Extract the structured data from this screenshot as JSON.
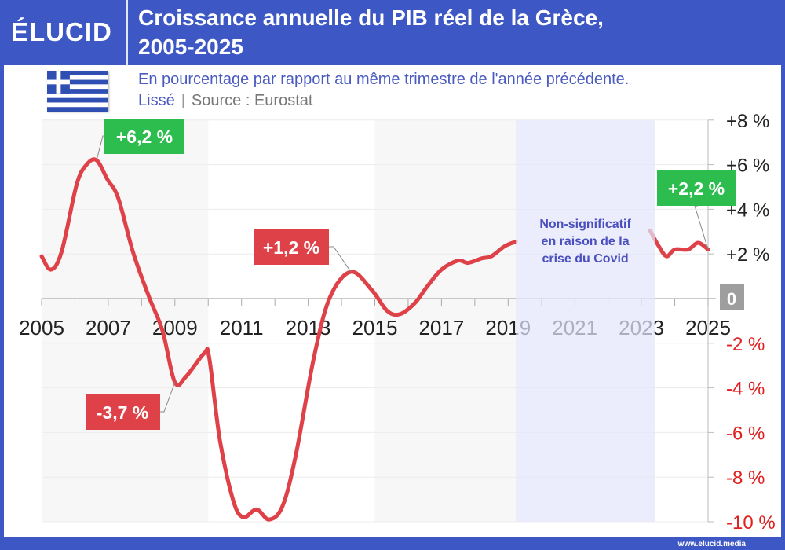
{
  "header": {
    "logo": "ÉLUCID",
    "title_line1": "Croissance annuelle du PIB réel de la Grèce,",
    "title_line2": "2005-2025"
  },
  "subtitle": {
    "line1": "En pourcentage par rapport au même trimestre de l'année précédente.",
    "smoothed": "Lissé",
    "separator": "|",
    "source": "Source : Eurostat"
  },
  "flag": "greece-flag",
  "footer": "www.elucid.media",
  "colors": {
    "brand": "#3d57c4",
    "line": "#de4148",
    "positive_label": "#2dbd4e",
    "negative_label": "#de4148",
    "covid_band": "#e4e6fb",
    "negative_tick": "#e0201f"
  },
  "chart_data": {
    "type": "line",
    "title": "Croissance annuelle du PIB réel de la Grèce, 2005-2025",
    "xlim": [
      2005,
      2025
    ],
    "ylim": [
      -10,
      8
    ],
    "x_ticks": [
      "2005",
      "2007",
      "2009",
      "2011",
      "2013",
      "2015",
      "2017",
      "2019",
      "2021",
      "2023",
      "2025"
    ],
    "y_ticks": [
      {
        "v": 8,
        "label": "+8 %"
      },
      {
        "v": 6,
        "label": "+6 %"
      },
      {
        "v": 4,
        "label": "+4 %"
      },
      {
        "v": 2,
        "label": "+2 %"
      },
      {
        "v": 0,
        "label": "0"
      },
      {
        "v": -2,
        "label": "-2 %"
      },
      {
        "v": -4,
        "label": "-4 %"
      },
      {
        "v": -6,
        "label": "-6 %"
      },
      {
        "v": -8,
        "label": "-8 %"
      },
      {
        "v": -10,
        "label": "-10 %"
      }
    ],
    "y_axis_position": "right",
    "grid": true,
    "series": [
      {
        "segment": "pre-covid",
        "points": [
          [
            2005.0,
            1.9
          ],
          [
            2005.28,
            1.3
          ],
          [
            2005.6,
            2.1
          ],
          [
            2006.05,
            5.1
          ],
          [
            2006.35,
            6.0
          ],
          [
            2006.65,
            6.2
          ],
          [
            2006.97,
            5.35
          ],
          [
            2007.3,
            4.5
          ],
          [
            2007.75,
            2.05
          ],
          [
            2008.23,
            0.05
          ],
          [
            2008.63,
            -1.45
          ],
          [
            2009.0,
            -3.75
          ],
          [
            2009.33,
            -3.5
          ],
          [
            2009.88,
            -2.45
          ],
          [
            2010.03,
            -2.65
          ],
          [
            2010.35,
            -6.35
          ],
          [
            2010.75,
            -9.05
          ],
          [
            2011.05,
            -9.8
          ],
          [
            2011.45,
            -9.45
          ],
          [
            2011.83,
            -9.9
          ],
          [
            2012.23,
            -9.3
          ],
          [
            2012.63,
            -7.0
          ],
          [
            2013.17,
            -2.65
          ],
          [
            2013.65,
            0.05
          ],
          [
            2014.28,
            1.2
          ],
          [
            2014.9,
            0.4
          ],
          [
            2015.37,
            -0.55
          ],
          [
            2015.75,
            -0.7
          ],
          [
            2016.2,
            -0.2
          ],
          [
            2016.55,
            0.5
          ],
          [
            2017.0,
            1.3
          ],
          [
            2017.5,
            1.7
          ],
          [
            2017.8,
            1.6
          ],
          [
            2018.2,
            1.8
          ],
          [
            2018.5,
            1.9
          ],
          [
            2018.9,
            2.35
          ],
          [
            2019.23,
            2.55
          ]
        ]
      },
      {
        "segment": "post-covid",
        "points": [
          [
            2023.26,
            3.05
          ],
          [
            2023.5,
            2.4
          ],
          [
            2023.75,
            1.9
          ],
          [
            2024.0,
            2.2
          ],
          [
            2024.4,
            2.2
          ],
          [
            2024.7,
            2.5
          ],
          [
            2025.0,
            2.2
          ]
        ]
      }
    ],
    "covid_band": {
      "from": 2019.23,
      "to": 2023.4,
      "label_lines": [
        "Non-significatif",
        "en raison de la",
        "crise du Covid"
      ]
    },
    "annotations": [
      {
        "x": 2006.65,
        "y": 6.2,
        "text": "+6,2 %",
        "kind": "positive"
      },
      {
        "x": 2009.0,
        "y": -3.75,
        "text": "-3,7 %",
        "kind": "negative"
      },
      {
        "x": 2014.28,
        "y": 1.2,
        "text": "+1,2 %",
        "kind": "negative"
      },
      {
        "x": 2025.0,
        "y": 2.2,
        "text": "+2,2 %",
        "kind": "positive"
      }
    ]
  }
}
